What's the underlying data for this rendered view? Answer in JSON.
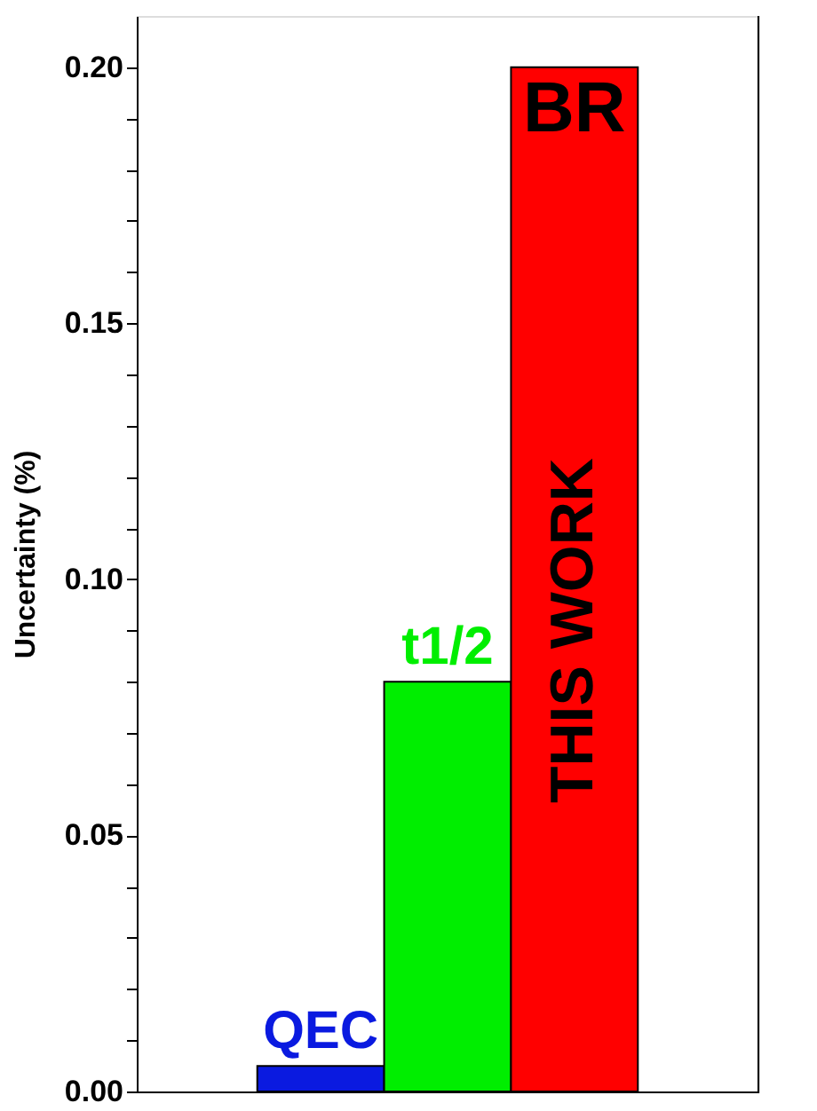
{
  "chart_data": {
    "type": "bar",
    "ylabel": "Uncertainty (%)",
    "categories": [
      "QEC",
      "t1/2",
      "BR"
    ],
    "values": [
      0.005,
      0.08,
      0.2
    ],
    "colors": [
      "#0a1ae0",
      "#00ee00",
      "#ff0000"
    ],
    "ylim": [
      0,
      0.21
    ],
    "yticks": [
      {
        "value": 0,
        "label": "0.00"
      },
      {
        "value": 0.01,
        "label": null
      },
      {
        "value": 0.02,
        "label": null
      },
      {
        "value": 0.03,
        "label": null
      },
      {
        "value": 0.04,
        "label": null
      },
      {
        "value": 0.05,
        "label": "0.05"
      },
      {
        "value": 0.06,
        "label": null
      },
      {
        "value": 0.07,
        "label": null
      },
      {
        "value": 0.08,
        "label": null
      },
      {
        "value": 0.09,
        "label": null
      },
      {
        "value": 0.1,
        "label": "0.10"
      },
      {
        "value": 0.11,
        "label": null
      },
      {
        "value": 0.12,
        "label": null
      },
      {
        "value": 0.13,
        "label": null
      },
      {
        "value": 0.14,
        "label": null
      },
      {
        "value": 0.15,
        "label": "0.15"
      },
      {
        "value": 0.16,
        "label": null
      },
      {
        "value": 0.17,
        "label": null
      },
      {
        "value": 0.18,
        "label": null
      },
      {
        "value": 0.19,
        "label": null
      },
      {
        "value": 0.2,
        "label": "0.20"
      }
    ],
    "annotations": [
      "THIS WORK"
    ],
    "grid": false
  }
}
